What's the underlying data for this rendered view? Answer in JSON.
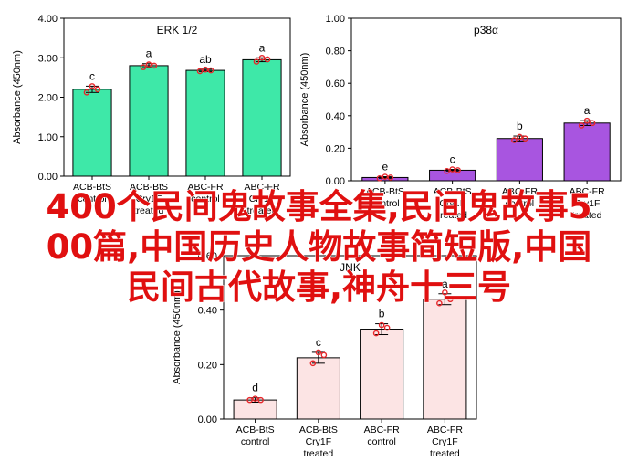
{
  "colors": {
    "green": "#3EE8A8",
    "purple": "#A855E0",
    "pink": "#FCE4E4",
    "points": "#E8262A",
    "overlay_text": "#E01010"
  },
  "chart_data": [
    {
      "type": "bar",
      "title": "ERK 1/2",
      "ylabel": "Absorbance (450nm)",
      "ylim": [
        0,
        4
      ],
      "yticks": [
        "0.00",
        "1.00",
        "2.00",
        "3.00",
        "4.00"
      ],
      "categories": [
        [
          "ACB-BtS",
          "control"
        ],
        [
          "ACB-BtS",
          "Cry1F",
          "treated"
        ],
        [
          "ABC-FR",
          "control"
        ],
        [
          "ABC-FR",
          "Cry1F",
          "treated"
        ]
      ],
      "values": [
        2.2,
        2.8,
        2.68,
        2.95
      ],
      "errors": [
        0.08,
        0.05,
        0.03,
        0.05
      ],
      "letters": [
        "c",
        "a",
        "ab",
        "a"
      ],
      "points": [
        [
          2.12,
          2.28,
          2.2
        ],
        [
          2.76,
          2.83,
          2.8
        ],
        [
          2.66,
          2.7,
          2.68
        ],
        [
          2.9,
          3.0,
          2.96
        ]
      ],
      "bar_colors": [
        "green",
        "green",
        "green",
        "green"
      ]
    },
    {
      "type": "bar",
      "title": "p38α",
      "ylabel": "Absorbance (450nm)",
      "ylim": [
        0,
        1
      ],
      "yticks": [
        "0.00",
        "0.20",
        "0.40",
        "0.60",
        "0.80",
        "1.00"
      ],
      "categories": [
        [
          "ACB-BtS",
          "control"
        ],
        [
          "ACB-BtS",
          "Cry1F",
          "treated"
        ],
        [
          "ABC-FR",
          "control"
        ],
        [
          "ABC-FR",
          "Cry1F",
          "treated"
        ]
      ],
      "values": [
        0.02,
        0.065,
        0.26,
        0.355
      ],
      "errors": [
        0.005,
        0.005,
        0.015,
        0.015
      ],
      "letters": [
        "e",
        "c",
        "b",
        "a"
      ],
      "points": [
        [
          0.015,
          0.025,
          0.02
        ],
        [
          0.06,
          0.07,
          0.065
        ],
        [
          0.25,
          0.27,
          0.26
        ],
        [
          0.34,
          0.37,
          0.355
        ]
      ],
      "bar_colors": [
        "purple",
        "purple",
        "purple",
        "purple"
      ]
    },
    {
      "type": "bar",
      "title": "JNK",
      "ylabel": "Absorbance (450nm)",
      "ylim": [
        0,
        0.6
      ],
      "yticks": [
        "0.00",
        "0.20",
        "0.40",
        "0.60"
      ],
      "categories": [
        [
          "ACB-BtS",
          "control"
        ],
        [
          "ACB-BtS",
          "Cry1F",
          "treated"
        ],
        [
          "ABC-FR",
          "control"
        ],
        [
          "ABC-FR",
          "Cry1F",
          "treated"
        ]
      ],
      "values": [
        0.07,
        0.225,
        0.33,
        0.44
      ],
      "errors": [
        0.008,
        0.02,
        0.02,
        0.02
      ],
      "letters": [
        "d",
        "c",
        "b",
        "a"
      ],
      "points": [
        [
          0.07,
          0.075,
          0.07
        ],
        [
          0.205,
          0.245,
          0.235
        ],
        [
          0.315,
          0.345,
          0.335
        ],
        [
          0.425,
          0.465,
          0.44
        ]
      ],
      "bar_colors": [
        "pink",
        "pink",
        "pink",
        "pink"
      ]
    }
  ],
  "overlay": {
    "line1": "400个民间鬼故事全集,民间鬼故事5",
    "line2": "00篇,中国历史人物故事简短版,中国",
    "line3": "民间古代故事,神舟十三号"
  }
}
